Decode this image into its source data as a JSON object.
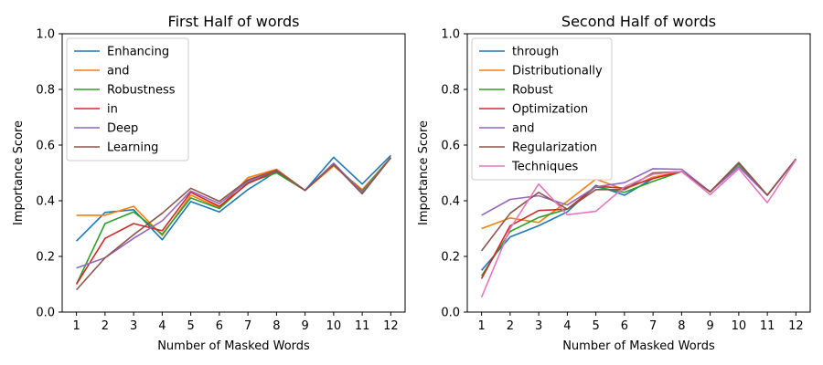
{
  "chart_data": [
    {
      "type": "line",
      "title": "First Half of words",
      "xlabel": "Number of Masked Words",
      "ylabel": "Importance Score",
      "x": [
        1,
        2,
        3,
        4,
        5,
        6,
        7,
        8,
        9,
        10,
        11,
        12
      ],
      "ylim": [
        0.0,
        1.0
      ],
      "yticks": [
        "0.0",
        "0.2",
        "0.4",
        "0.6",
        "0.8",
        "1.0"
      ],
      "xticks": [
        "1",
        "2",
        "3",
        "4",
        "5",
        "6",
        "7",
        "8",
        "9",
        "10",
        "11",
        "12"
      ],
      "grid": false,
      "legend_position": "top-left",
      "series": [
        {
          "name": "Enhancing",
          "color": "#1f77b4",
          "values": [
            0.255,
            0.358,
            0.368,
            0.26,
            0.397,
            0.36,
            0.44,
            0.505,
            0.437,
            0.556,
            0.46,
            0.563
          ]
        },
        {
          "name": "and",
          "color": "#ff7f0e",
          "values": [
            0.348,
            0.348,
            0.38,
            0.275,
            0.42,
            0.375,
            0.483,
            0.513,
            0.437,
            0.525,
            0.44,
            0.555
          ]
        },
        {
          "name": "Robustness",
          "color": "#2ca02c",
          "values": [
            0.1,
            0.318,
            0.36,
            0.28,
            0.41,
            0.372,
            0.465,
            0.5,
            0.437,
            0.53,
            0.435,
            0.555
          ]
        },
        {
          "name": "in",
          "color": "#d62728",
          "values": [
            0.1,
            0.265,
            0.318,
            0.292,
            0.43,
            0.38,
            0.462,
            0.508,
            0.437,
            0.53,
            0.428,
            0.555
          ]
        },
        {
          "name": "Deep",
          "color": "#9467bd",
          "values": [
            0.158,
            0.195,
            0.265,
            0.328,
            0.435,
            0.39,
            0.47,
            0.51,
            0.437,
            0.535,
            0.43,
            0.555
          ]
        },
        {
          "name": "Learning",
          "color": "#8c564b",
          "values": [
            0.08,
            0.195,
            0.278,
            0.355,
            0.445,
            0.398,
            0.475,
            0.51,
            0.437,
            0.53,
            0.425,
            0.555
          ]
        }
      ]
    },
    {
      "type": "line",
      "title": "Second Half of words",
      "xlabel": "Number of Masked Words",
      "ylabel": "Importance Score",
      "x": [
        1,
        2,
        3,
        4,
        5,
        6,
        7,
        8,
        9,
        10,
        11,
        12
      ],
      "ylim": [
        0.0,
        1.0
      ],
      "yticks": [
        "0.0",
        "0.2",
        "0.4",
        "0.6",
        "0.8",
        "1.0"
      ],
      "xticks": [
        "1",
        "2",
        "3",
        "4",
        "5",
        "6",
        "7",
        "8",
        "9",
        "10",
        "11",
        "12"
      ],
      "grid": false,
      "legend_position": "top-left",
      "series": [
        {
          "name": "through",
          "color": "#1f77b4",
          "values": [
            0.15,
            0.27,
            0.31,
            0.36,
            0.455,
            0.42,
            0.48,
            0.505,
            0.432,
            0.53,
            0.42,
            0.55
          ]
        },
        {
          "name": "Distributionally",
          "color": "#ff7f0e",
          "values": [
            0.3,
            0.338,
            0.322,
            0.398,
            0.478,
            0.44,
            0.485,
            0.505,
            0.432,
            0.532,
            0.42,
            0.55
          ]
        },
        {
          "name": "Robust",
          "color": "#2ca02c",
          "values": [
            0.13,
            0.29,
            0.34,
            0.37,
            0.45,
            0.43,
            0.47,
            0.505,
            0.432,
            0.532,
            0.42,
            0.55
          ]
        },
        {
          "name": "Optimization",
          "color": "#d62728",
          "values": [
            0.12,
            0.31,
            0.365,
            0.37,
            0.452,
            0.445,
            0.48,
            0.505,
            0.432,
            0.537,
            0.42,
            0.55
          ]
        },
        {
          "name": "and",
          "color": "#9467bd",
          "values": [
            0.348,
            0.405,
            0.418,
            0.385,
            0.45,
            0.465,
            0.515,
            0.513,
            0.432,
            0.522,
            0.42,
            0.55
          ]
        },
        {
          "name": "Regularization",
          "color": "#8c564b",
          "values": [
            0.22,
            0.355,
            0.43,
            0.37,
            0.44,
            0.44,
            0.5,
            0.505,
            0.432,
            0.537,
            0.42,
            0.55
          ]
        },
        {
          "name": "Techniques",
          "color": "#e377c2",
          "values": [
            0.053,
            0.3,
            0.46,
            0.35,
            0.362,
            0.45,
            0.495,
            0.505,
            0.422,
            0.515,
            0.393,
            0.547
          ]
        }
      ]
    }
  ]
}
